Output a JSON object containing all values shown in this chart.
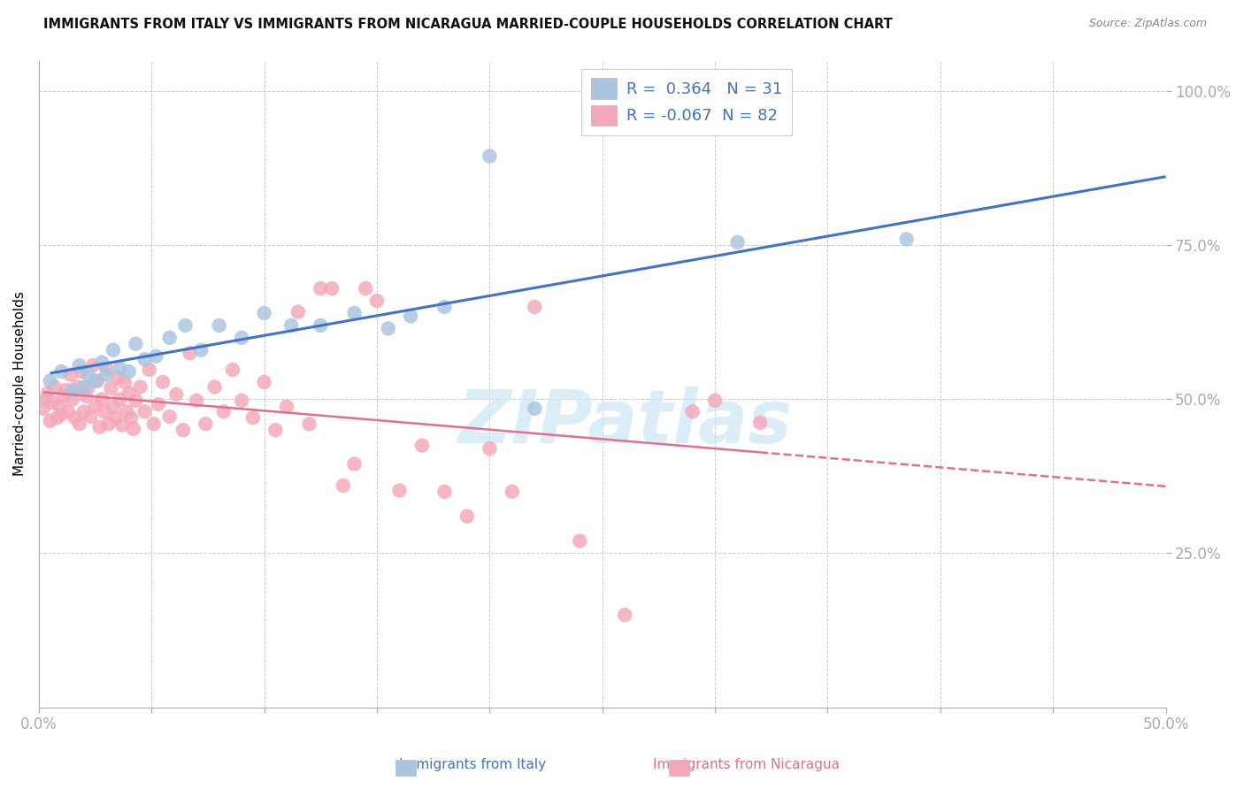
{
  "title": "IMMIGRANTS FROM ITALY VS IMMIGRANTS FROM NICARAGUA MARRIED-COUPLE HOUSEHOLDS CORRELATION CHART",
  "source": "Source: ZipAtlas.com",
  "ylabel": "Married-couple Households",
  "xlabel_italy": "Immigrants from Italy",
  "xlabel_nicaragua": "Immigrants from Nicaragua",
  "xlim": [
    0.0,
    0.5
  ],
  "ylim": [
    0.0,
    1.05
  ],
  "xtick_vals": [
    0.0,
    0.05,
    0.1,
    0.15,
    0.2,
    0.25,
    0.3,
    0.35,
    0.4,
    0.45,
    0.5
  ],
  "xtick_show": [
    0.0,
    0.5
  ],
  "xtick_show_labels": [
    "0.0%",
    "50.0%"
  ],
  "ytick_vals": [
    0.25,
    0.5,
    0.75,
    1.0
  ],
  "ytick_labels": [
    "25.0%",
    "50.0%",
    "75.0%",
    "100.0%"
  ],
  "R_italy": 0.364,
  "N_italy": 31,
  "R_nicaragua": -0.067,
  "N_nicaragua": 82,
  "italy_color": "#a8c4e0",
  "nicaragua_color": "#f4a7b9",
  "italy_line_color": "#4472c4",
  "nicaragua_line_color": "#e07090",
  "italy_x": [
    0.005,
    0.01,
    0.015,
    0.018,
    0.02,
    0.022,
    0.025,
    0.028,
    0.03,
    0.033,
    0.036,
    0.04,
    0.043,
    0.047,
    0.052,
    0.058,
    0.065,
    0.072,
    0.08,
    0.09,
    0.1,
    0.112,
    0.125,
    0.14,
    0.155,
    0.165,
    0.18,
    0.2,
    0.22,
    0.31,
    0.385
  ],
  "italy_y": [
    0.53,
    0.545,
    0.515,
    0.555,
    0.52,
    0.54,
    0.53,
    0.56,
    0.54,
    0.58,
    0.55,
    0.545,
    0.59,
    0.565,
    0.57,
    0.6,
    0.62,
    0.58,
    0.62,
    0.6,
    0.64,
    0.62,
    0.62,
    0.64,
    0.615,
    0.635,
    0.65,
    0.895,
    0.485,
    0.755,
    0.76
  ],
  "nicaragua_x": [
    0.002,
    0.003,
    0.004,
    0.005,
    0.006,
    0.007,
    0.008,
    0.009,
    0.01,
    0.011,
    0.012,
    0.013,
    0.014,
    0.015,
    0.016,
    0.017,
    0.018,
    0.019,
    0.02,
    0.021,
    0.022,
    0.023,
    0.024,
    0.025,
    0.026,
    0.027,
    0.028,
    0.029,
    0.03,
    0.031,
    0.032,
    0.033,
    0.034,
    0.035,
    0.036,
    0.037,
    0.038,
    0.039,
    0.04,
    0.041,
    0.042,
    0.043,
    0.045,
    0.047,
    0.049,
    0.051,
    0.053,
    0.055,
    0.058,
    0.061,
    0.064,
    0.067,
    0.07,
    0.074,
    0.078,
    0.082,
    0.086,
    0.09,
    0.095,
    0.1,
    0.105,
    0.11,
    0.115,
    0.12,
    0.125,
    0.13,
    0.135,
    0.14,
    0.145,
    0.15,
    0.16,
    0.17,
    0.18,
    0.19,
    0.2,
    0.21,
    0.22,
    0.24,
    0.26,
    0.29,
    0.3,
    0.32
  ],
  "nicaragua_y": [
    0.485,
    0.5,
    0.51,
    0.465,
    0.495,
    0.52,
    0.47,
    0.49,
    0.475,
    0.505,
    0.515,
    0.48,
    0.54,
    0.5,
    0.47,
    0.52,
    0.46,
    0.545,
    0.48,
    0.505,
    0.52,
    0.472,
    0.555,
    0.49,
    0.53,
    0.455,
    0.5,
    0.48,
    0.55,
    0.46,
    0.518,
    0.488,
    0.47,
    0.535,
    0.5,
    0.458,
    0.528,
    0.48,
    0.51,
    0.47,
    0.452,
    0.498,
    0.52,
    0.48,
    0.548,
    0.46,
    0.492,
    0.528,
    0.472,
    0.508,
    0.45,
    0.575,
    0.498,
    0.46,
    0.52,
    0.48,
    0.548,
    0.498,
    0.47,
    0.528,
    0.45,
    0.488,
    0.642,
    0.46,
    0.68,
    0.68,
    0.36,
    0.395,
    0.68,
    0.66,
    0.352,
    0.425,
    0.35,
    0.31,
    0.42,
    0.35,
    0.65,
    0.27,
    0.15,
    0.48,
    0.498,
    0.462
  ],
  "watermark": "ZIPatlas",
  "watermark_color": "#cce8f5"
}
